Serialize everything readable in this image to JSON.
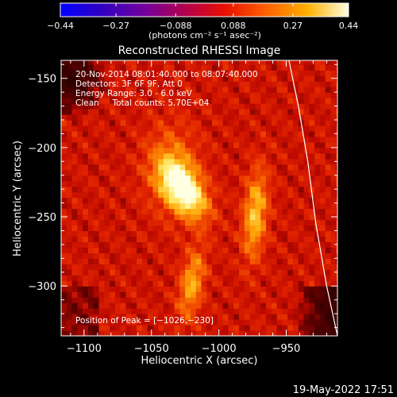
{
  "chart_data": {
    "type": "heatmap",
    "title": "Reconstructed RHESSI Image",
    "xlabel": "Heliocentric X (arcsec)",
    "ylabel": "Heliocentric Y (arcsec)",
    "xlim": [
      -1117,
      -912
    ],
    "ylim": [
      -336,
      -137
    ],
    "xticks": [
      {
        "value": -1100,
        "label": "−1100"
      },
      {
        "value": -1050,
        "label": "−1050"
      },
      {
        "value": -1000,
        "label": "−1000"
      },
      {
        "value": -950,
        "label": "−950"
      }
    ],
    "yticks": [
      {
        "value": -150,
        "label": "−150"
      },
      {
        "value": -200,
        "label": "−200"
      },
      {
        "value": -250,
        "label": "−250"
      },
      {
        "value": -300,
        "label": "−300"
      }
    ],
    "colorbar": {
      "min": -0.44,
      "max": 0.44,
      "ticks": [
        {
          "value": -0.44,
          "label": "−0.44"
        },
        {
          "value": -0.27,
          "label": "−0.27"
        },
        {
          "value": -0.088,
          "label": "−0.088"
        },
        {
          "value": 0.088,
          "label": "0.088"
        },
        {
          "value": 0.27,
          "label": "0.27"
        },
        {
          "value": 0.44,
          "label": "0.44"
        }
      ],
      "unit_label": "(photons cm⁻² s⁻¹ asec⁻²)",
      "colors": [
        "#0000ff",
        "#3000c0",
        "#7000a0",
        "#b00050",
        "#e81000",
        "#ff6000",
        "#ffb000",
        "#ffffe0"
      ]
    },
    "annotations": [
      "20-Nov-2014 08:01:40.000 to 08:07:40.000",
      "Detectors: 3F 6F 9F, Att 0",
      "Energy Range: 3.0 - 6.0 keV",
      "Clean     Total counts: 5.70E+04"
    ],
    "peak_label": "Position of Peak = [−1026,−230]",
    "sources": [
      {
        "x": -1026,
        "y": -230,
        "peak": 0.44,
        "sx": 9,
        "sy": 16,
        "rot": -35
      },
      {
        "x": -973,
        "y": -248,
        "peak": 0.28,
        "sx": 6,
        "sy": 22,
        "rot": 5
      },
      {
        "x": -1020,
        "y": -298,
        "peak": 0.24,
        "sx": 6,
        "sy": 18,
        "rot": 10
      },
      {
        "x": -1035,
        "y": -215,
        "peak": 0.16,
        "sx": 14,
        "sy": 22,
        "rot": 0
      }
    ],
    "limb_curve": [
      {
        "x": -948,
        "y": -137
      },
      {
        "x": -941,
        "y": -170
      },
      {
        "x": -934,
        "y": -210
      },
      {
        "x": -928,
        "y": -255
      },
      {
        "x": -920,
        "y": -300
      },
      {
        "x": -912,
        "y": -336
      }
    ],
    "limb_color": "#ffffff"
  },
  "footer": {
    "timestamp": "19-May-2022 17:51"
  }
}
